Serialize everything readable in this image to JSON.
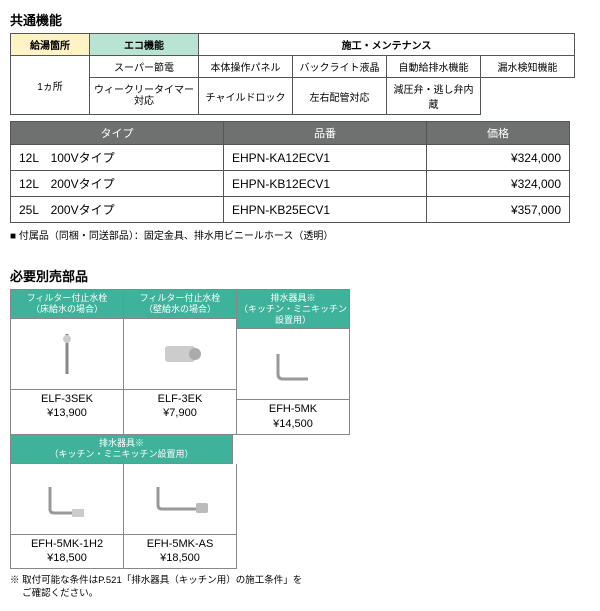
{
  "section_common_title": "共通機能",
  "func": {
    "col1_header": "給湯箇所",
    "col1_value": "1ヵ所",
    "col2_header": "エコ機能",
    "col2_r1": "スーパー節電",
    "col2_r2": "ウィークリータイマー\n対応",
    "col3_header": "施工・メンテナンス",
    "col3_r1c1": "本体操作パネル",
    "col3_r1c2": "バックライト液晶",
    "col3_r1c3": "自動給排水機能",
    "col3_r1c4": "漏水検知機能",
    "col3_r2c1": "チャイルドロック",
    "col3_r2c2": "左右配管対応",
    "col3_r2c3": "減圧弁・逃し弁内蔵"
  },
  "price_headers": {
    "type": "タイプ",
    "part": "品番",
    "price": "価格"
  },
  "price_rows": [
    {
      "type": "12L　100Vタイプ",
      "part": "EHPN-KA12ECV1",
      "price": "¥324,000"
    },
    {
      "type": "12L　200Vタイプ",
      "part": "EHPN-KB12ECV1",
      "price": "¥324,000"
    },
    {
      "type": "25L　200Vタイプ",
      "part": "EHPN-KB25ECV1",
      "price": "¥357,000"
    }
  ],
  "accessory_note": "■ 付属品（同梱・同送部品）：固定金具、排水用ビニールホース（透明）",
  "parts_title": "必要別売部品",
  "parts_row1": [
    {
      "header": "フィルター付止水栓\n（床給水の場合）",
      "model": "ELF-3SEK",
      "price": "¥13,900"
    },
    {
      "header": "フィルター付止水栓\n（壁給水の場合）",
      "model": "ELF-3EK",
      "price": "¥7,900"
    },
    {
      "header": "排水器具※\n（キッチン・ミニキッチン設置用）",
      "model": "EFH-5MK",
      "price": "¥14,500"
    }
  ],
  "parts_row2_header": "排水器具※\n（キッチン・ミニキッチン設置用）",
  "parts_row2": [
    {
      "model": "EFH-5MK-1H2",
      "price": "¥18,500"
    },
    {
      "model": "EFH-5MK-AS",
      "price": "¥18,500"
    }
  ],
  "foot_note": "※ 取付可能な条件はP.521「排水器具（キッチン用）の施工条件」を\n　 ご確認ください。"
}
